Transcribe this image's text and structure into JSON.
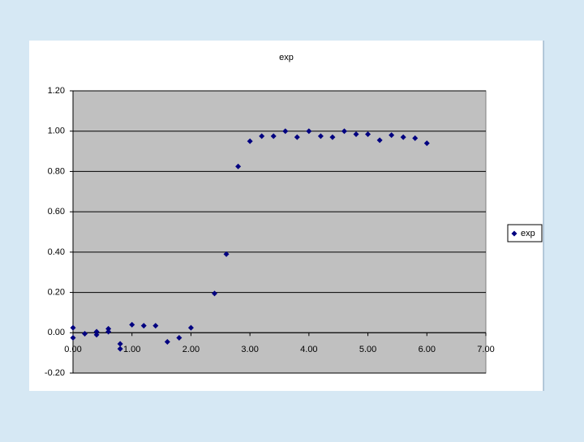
{
  "chart_data": {
    "type": "scatter",
    "title": "exp",
    "series": [
      {
        "name": "exp",
        "color": "#000080",
        "x": [
          0,
          0,
          0.2,
          0.4,
          0.4,
          0.6,
          0.6,
          0.8,
          0.8,
          1.0,
          1.2,
          1.4,
          1.6,
          1.8,
          2.0,
          2.4,
          2.6,
          2.8,
          3.0,
          3.2,
          3.4,
          3.6,
          3.8,
          4.0,
          4.2,
          4.4,
          4.6,
          4.8,
          5.0,
          5.2,
          5.4,
          5.6,
          5.8,
          6.0
        ],
        "values": [
          0.025,
          -0.025,
          -0.005,
          0.005,
          -0.01,
          0.02,
          0.005,
          -0.055,
          -0.08,
          0.04,
          0.035,
          0.035,
          -0.045,
          -0.025,
          0.025,
          0.195,
          0.39,
          0.825,
          0.95,
          0.975,
          0.975,
          1.0,
          0.97,
          1.0,
          0.975,
          0.97,
          1.0,
          0.985,
          0.985,
          0.955,
          0.98,
          0.97,
          0.965,
          0.94
        ]
      }
    ],
    "xlim": [
      0,
      7
    ],
    "xticks": [
      {
        "value": 0,
        "label": "0.00"
      },
      {
        "value": 1,
        "label": "1.00"
      },
      {
        "value": 2,
        "label": "2.00"
      },
      {
        "value": 3,
        "label": "3.00"
      },
      {
        "value": 4,
        "label": "4.00"
      },
      {
        "value": 5,
        "label": "5.00"
      },
      {
        "value": 6,
        "label": "6.00"
      },
      {
        "value": 7,
        "label": "7.00"
      }
    ],
    "ylim": [
      -0.2,
      1.2
    ],
    "yticks": [
      {
        "value": -0.2,
        "label": "-0.20"
      },
      {
        "value": 0,
        "label": "0.00"
      },
      {
        "value": 0.2,
        "label": "0.20"
      },
      {
        "value": 0.4,
        "label": "0.40"
      },
      {
        "value": 0.6,
        "label": "0.60"
      },
      {
        "value": 0.8,
        "label": "0.80"
      },
      {
        "value": 1.0,
        "label": "1.00"
      },
      {
        "value": 1.2,
        "label": "1.20"
      }
    ],
    "grid": true,
    "legend": "right"
  }
}
